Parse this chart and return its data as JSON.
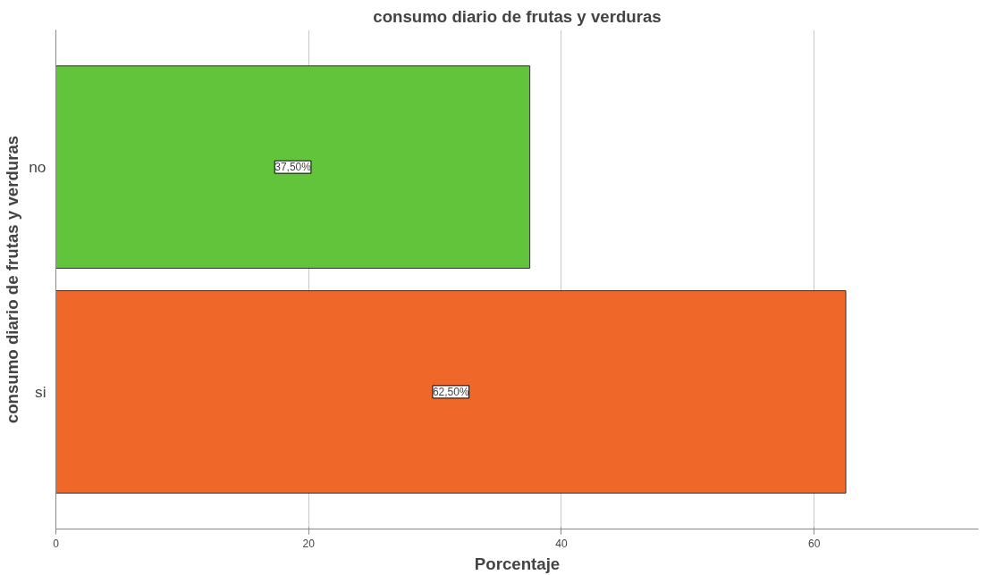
{
  "chart_data": {
    "type": "bar",
    "orientation": "horizontal",
    "title": "consumo diario de frutas y verduras",
    "xlabel": "Porcentaje",
    "ylabel": "consumo diario de frutas y verduras",
    "categories": [
      "no",
      "si"
    ],
    "values": [
      37.5,
      62.5
    ],
    "colors": [
      "#62c43a",
      "#f0672a"
    ],
    "value_labels": [
      "37,50%",
      "62,50%"
    ],
    "xlim": [
      0,
      73
    ],
    "xticks": [
      0,
      20,
      40,
      60
    ],
    "grid": "x"
  }
}
